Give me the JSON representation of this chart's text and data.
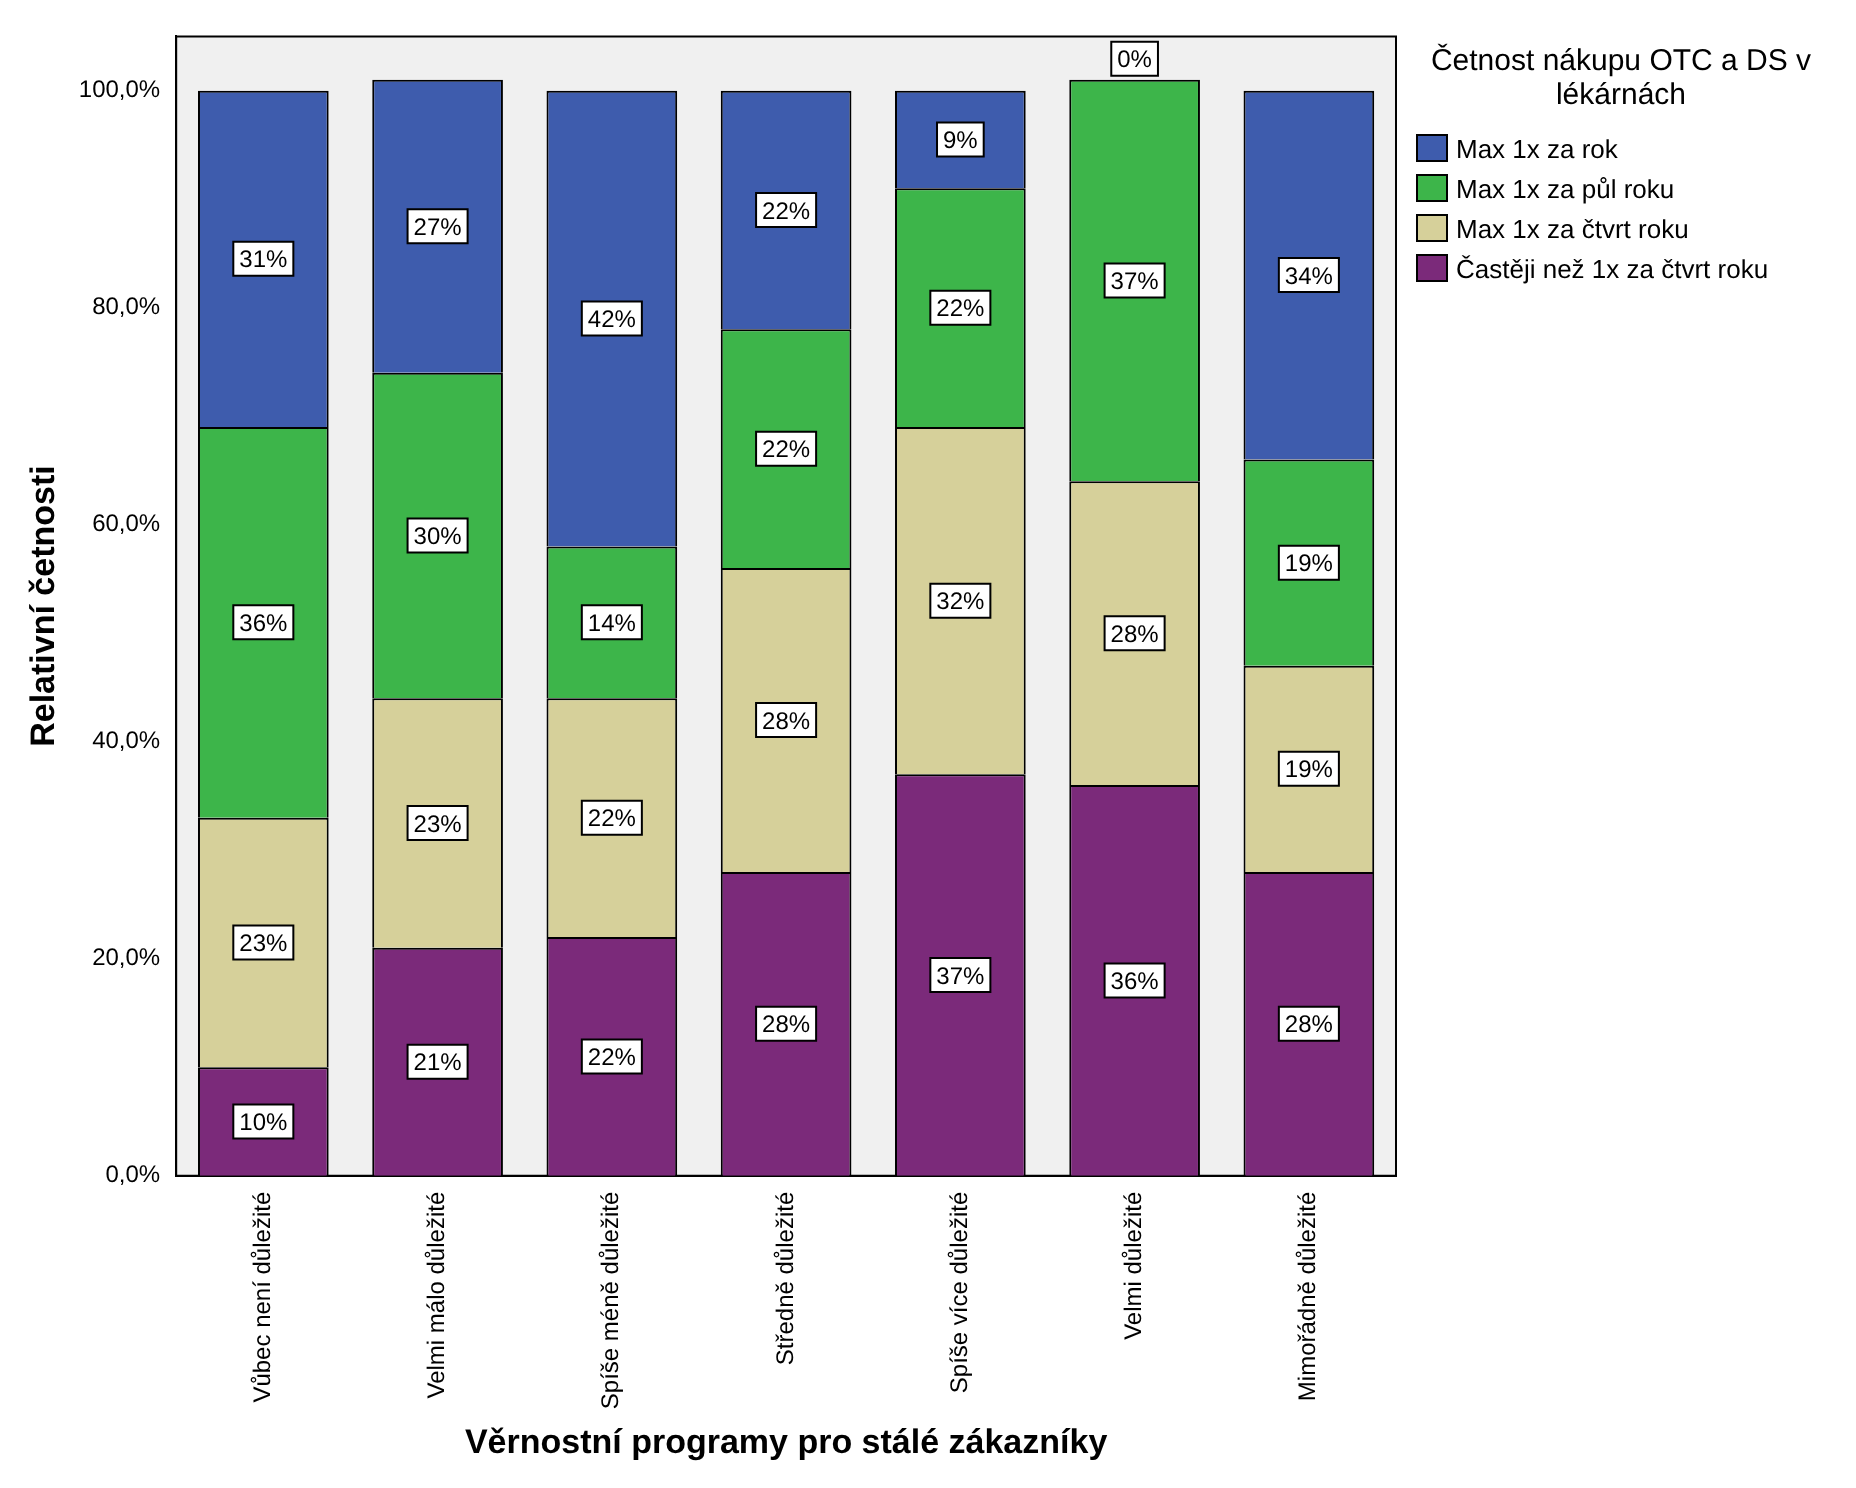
{
  "chart_data": {
    "type": "bar",
    "stacked": true,
    "xlabel": "Věrnostní programy pro stálé zákazníky",
    "ylabel": "Relativní četnosti",
    "legend_title": "Četnost nákupu OTC a DS v lékárnách",
    "legend": "top right",
    "grid": false,
    "categories": [
      "Vůbec není důležité",
      "Velmi málo důležité",
      "Spíše méně důležité",
      "Středně důležité",
      "Spíše více důležité",
      "Velmi důležité",
      "Mimořádně důležité"
    ],
    "ylim": [
      0,
      105
    ],
    "yticks": [
      {
        "value": 0,
        "label": "0,0%"
      },
      {
        "value": 20,
        "label": "20,0%"
      },
      {
        "value": 40,
        "label": "40,0%"
      },
      {
        "value": 60,
        "label": "60,0%"
      },
      {
        "value": 80,
        "label": "80,0%"
      },
      {
        "value": 100,
        "label": "100,0%"
      }
    ],
    "series": [
      {
        "name": "Častěji než 1x za čtvrt roku",
        "color": "#7b2a7a",
        "values": [
          10,
          21,
          22,
          28,
          37,
          36,
          28
        ],
        "value_labels": [
          "10%",
          "21%",
          "22%",
          "28%",
          "37%",
          "36%",
          "28%"
        ]
      },
      {
        "name": "Max 1x za čtvrt roku",
        "color": "#d6d09a",
        "values": [
          23,
          23,
          22,
          28,
          32,
          28,
          19
        ],
        "value_labels": [
          "23%",
          "23%",
          "22%",
          "28%",
          "32%",
          "28%",
          "19%"
        ]
      },
      {
        "name": "Max 1x za půl roku",
        "color": "#3db54a",
        "values": [
          36,
          30,
          14,
          22,
          22,
          37,
          19
        ],
        "value_labels": [
          "36%",
          "30%",
          "14%",
          "22%",
          "22%",
          "37%",
          "19%"
        ]
      },
      {
        "name": "Max 1x za rok",
        "color": "#3e5cad",
        "values": [
          31,
          27,
          42,
          22,
          9,
          0,
          34
        ],
        "value_labels": [
          "31%",
          "27%",
          "42%",
          "22%",
          "9%",
          "0%",
          "34%"
        ]
      }
    ]
  }
}
